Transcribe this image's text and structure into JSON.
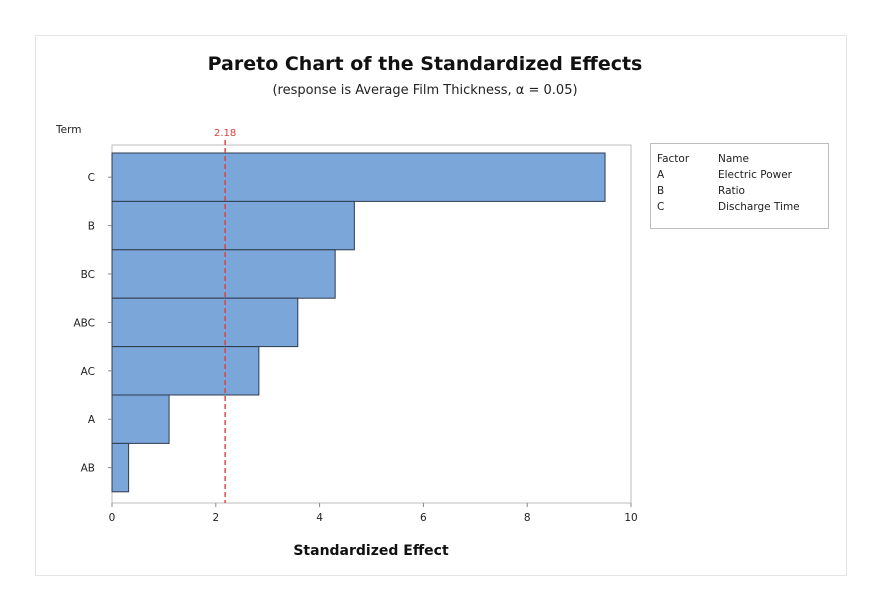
{
  "chart_data": {
    "type": "bar",
    "orientation": "horizontal",
    "title": "Pareto Chart of the Standardized Effects",
    "subtitle": "(response is Average Film Thickness, α = 0.05)",
    "xlabel": "Standardized Effect",
    "ylabel": "Term",
    "xlim": [
      0,
      10
    ],
    "xticks": [
      "0",
      "2",
      "4",
      "6",
      "8",
      "10"
    ],
    "categories": [
      "C",
      "B",
      "BC",
      "ABC",
      "AC",
      "A",
      "AB"
    ],
    "values": [
      9.5,
      4.67,
      4.3,
      3.58,
      2.83,
      1.1,
      0.32
    ],
    "reference_line": {
      "value": 2.18,
      "label": "2.18",
      "color": "#d9413a"
    },
    "bar_color": "#7ba6d9",
    "bar_edge_color": "#2d3b4e",
    "grid": false
  },
  "legend": {
    "headers": [
      "Factor",
      "Name"
    ],
    "rows": [
      [
        "A",
        "Electric Power"
      ],
      [
        "B",
        "Ratio"
      ],
      [
        "C",
        "Discharge Time"
      ]
    ]
  },
  "caption": ""
}
